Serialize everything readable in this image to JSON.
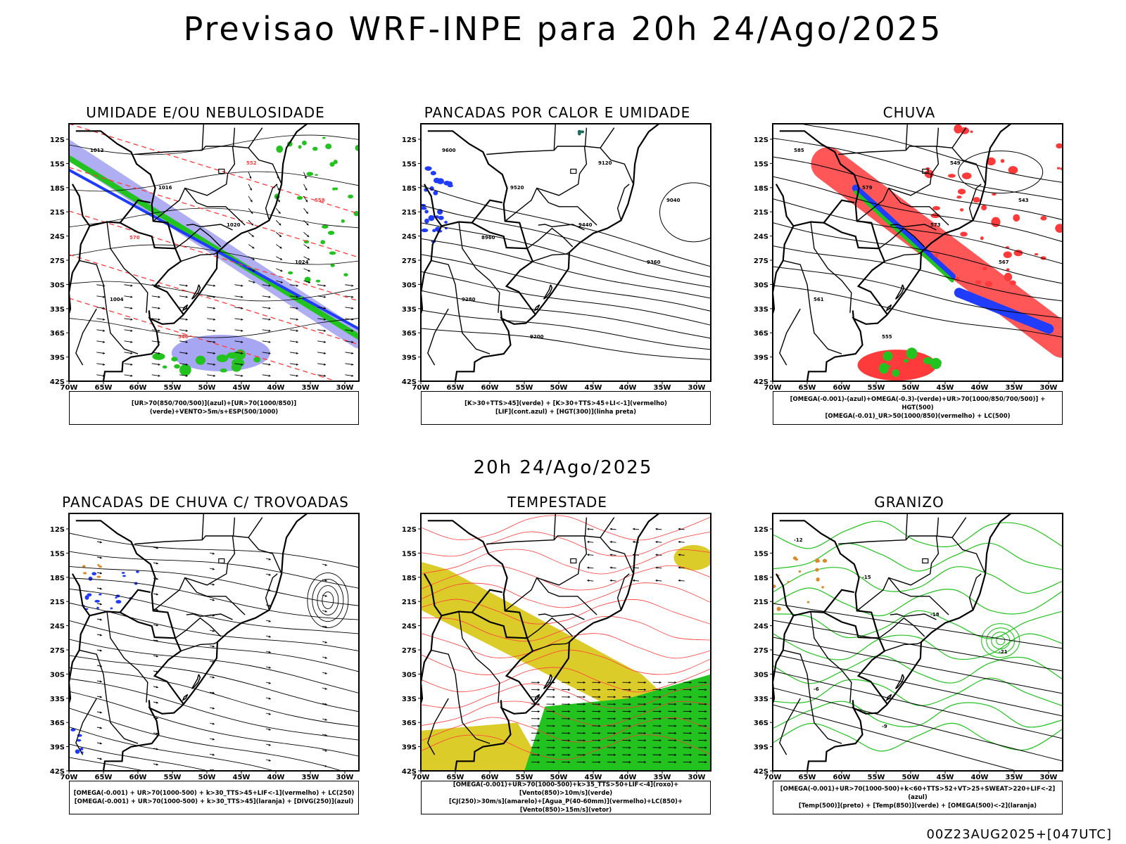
{
  "header": {
    "title": "Previsao WRF-INPE  para 20h 24/Ago/2025",
    "subtitle": "20h 24/Ago/2025",
    "footer": "00Z23AUG2025+[047UTC]"
  },
  "axes": {
    "lat_labels": [
      "12S",
      "15S",
      "18S",
      "21S",
      "24S",
      "27S",
      "30S",
      "33S",
      "36S",
      "39S",
      "42S"
    ],
    "lon_labels": [
      "70W",
      "65W",
      "60W",
      "55W",
      "50W",
      "45W",
      "40W",
      "35W",
      "30W"
    ]
  },
  "colors": {
    "blue": "#1f3cff",
    "light_blue": "#a7a6f2",
    "green": "#22c21f",
    "red": "#ff3a3a",
    "yellow": "#dccc2a",
    "orange": "#d98a2a",
    "black": "#000000"
  },
  "panels": [
    {
      "id": "umidade",
      "title": "UMIDADE E/OU NEBULOSIDADE",
      "legend": [
        "[UR>70(850/700/500)](azul)+[UR>70(1000/850)](verde)+VENTO>5m/s+ESP(500/1000)"
      ],
      "labels": [
        "1012",
        "1016",
        "1020",
        "1024",
        "1004",
        "546",
        "552",
        "558",
        "570"
      ]
    },
    {
      "id": "pancadas_calor",
      "title": "PANCADAS POR CALOR E UMIDADE",
      "legend": [
        "[K>30+TTS>45](verde) + [K>30+TTS>45+LI<-1](vermelho)",
        "[LIF](cont.azul) + [HGT(300)](linha preta)"
      ],
      "labels": [
        "9600",
        "9520",
        "9440",
        "9360",
        "9280",
        "9200",
        "9120",
        "9040",
        "8960"
      ]
    },
    {
      "id": "chuva",
      "title": "CHUVA",
      "legend": [
        "[OMEGA(-0.001)-(azul)+OMEGA(-0.3)-(verde)+UR>70(1000/850/700/500)] + HGT(500)",
        "[OMEGA(-0.01)_UR>50(1000/850)(vermelho) + LC(500)"
      ],
      "labels": [
        "585",
        "579",
        "573",
        "567",
        "561",
        "555",
        "549",
        "543"
      ]
    },
    {
      "id": "trovoadas",
      "title": "PANCADAS DE CHUVA C/ TROVOADAS",
      "legend": [
        "[OMEGA(-0.001) + UR>70(1000-500) + k>30_TTS>45+LIF<-1](vermelho) + LC(250)",
        "[OMEGA(-0.001) + UR>70(1000-500) + k>30_TTS>45](laranja) + [DIVG(250)](azul)"
      ],
      "labels": []
    },
    {
      "id": "tempestade",
      "title": "TEMPESTADE",
      "legend": [
        "[OMEGA(-0.001)+UR>70(1000-500)+k>35_TTS>50+LIF<-4](roxo)+[Vento(850)>10m/s](verde)",
        "[CJ(250)>30m/s](amarelo)+[Agua_P(40-60mm)](vermelho)+LC(850)+[Vento(850)>15m/s](vetor)"
      ],
      "labels": []
    },
    {
      "id": "granizo",
      "title": "GRANIZO",
      "legend": [
        "[OMEGA(-0.001)+UR>70(1000-500)+k<60+TTS>52+VT>25+SWEAT>220+LIF<-2](azul)",
        "[Temp(500)](preto) + [Temp(850)](verde) + [OMEGA(500)<-2](laranja)"
      ],
      "labels": [
        "-12",
        "-15",
        "-18",
        "-21",
        "-6",
        "-9"
      ]
    }
  ]
}
